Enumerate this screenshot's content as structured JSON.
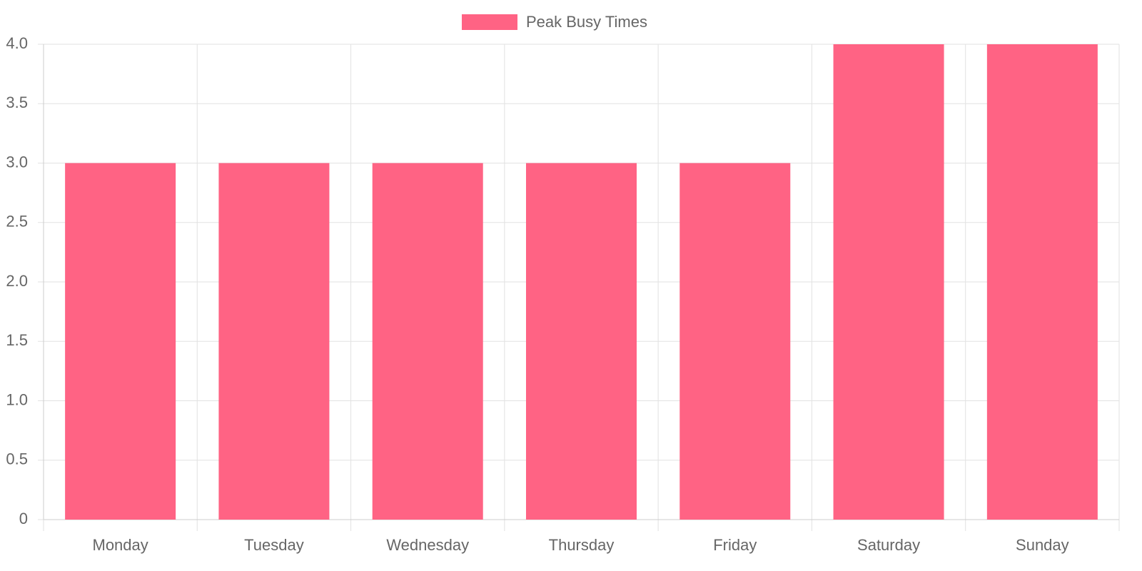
{
  "chart_data": {
    "type": "bar",
    "categories": [
      "Monday",
      "Tuesday",
      "Wednesday",
      "Thursday",
      "Friday",
      "Saturday",
      "Sunday"
    ],
    "series": [
      {
        "name": "Peak Busy Times",
        "color": "#ff6384",
        "values": [
          3,
          3,
          3,
          3,
          3,
          4,
          4
        ]
      }
    ],
    "ylim": [
      0,
      4
    ],
    "yticks": [
      0,
      0.5,
      {
        "value": 1,
        "label": "1.0"
      },
      1.5,
      {
        "value": 2,
        "label": "2.0"
      },
      2.5,
      {
        "value": 3,
        "label": "3.0"
      },
      3.5,
      {
        "value": 4,
        "label": "4.0"
      }
    ],
    "grid": true,
    "legend": "top"
  }
}
